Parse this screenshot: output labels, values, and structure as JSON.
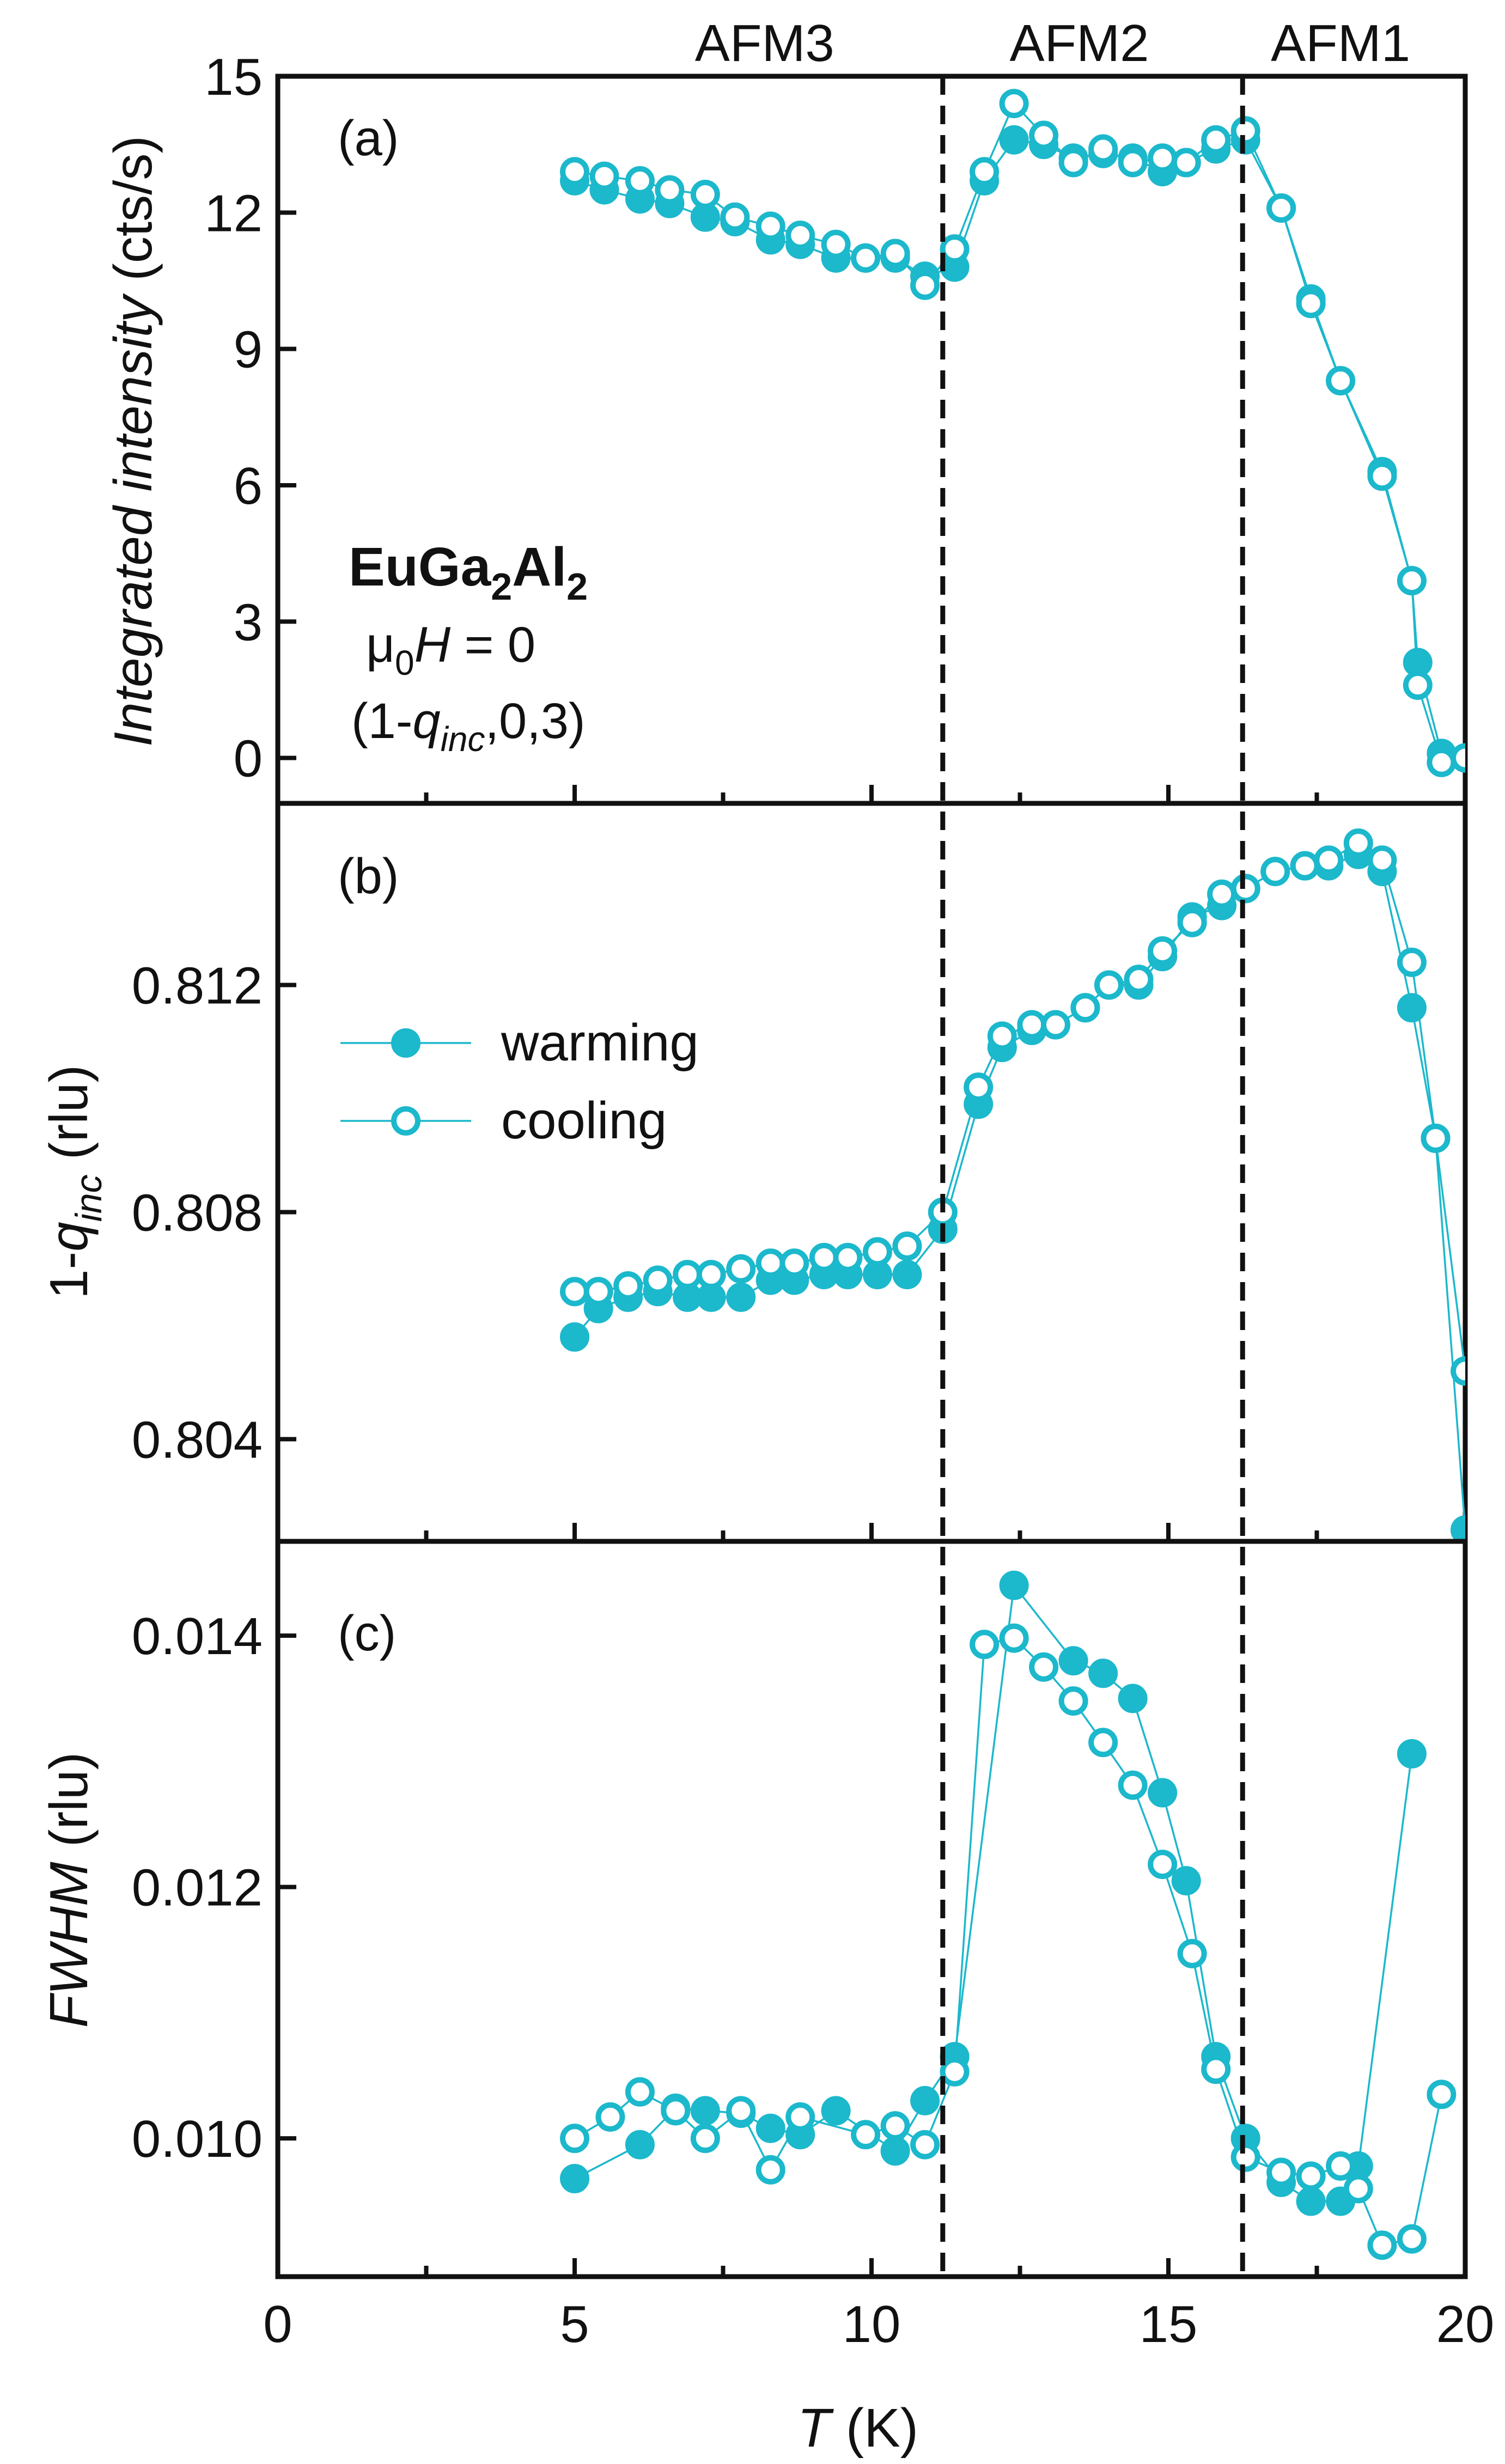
{
  "colors": {
    "series": "#1CB8CC",
    "axis": "#111111",
    "phase_line": "#111111",
    "background": "#ffffff"
  },
  "chart_data": [
    {
      "panel": "a",
      "type": "scatter",
      "panel_label": "(a)",
      "ylabel": "Integrated intensity (cts/s)",
      "ylabel_parts": {
        "italic": "Integrated intensity",
        "normal": " (cts/s)"
      },
      "ylim": [
        -1,
        15
      ],
      "yticks": [
        "0",
        "3",
        "6",
        "9",
        "12",
        "15"
      ],
      "ytick_values": [
        0,
        3,
        6,
        9,
        12,
        15
      ],
      "xlim": [
        0,
        20
      ],
      "annotation": {
        "compound": {
          "main": "EuGa",
          "sub1": "2",
          "mid": "Al",
          "sub2": "2"
        },
        "field": {
          "mu": "μ",
          "sub": "0",
          "H": "H",
          "rest": " = 0"
        },
        "reflection": {
          "pre": "(1-",
          "q": "q",
          "sub": "inc",
          "post": ",0,3)"
        }
      },
      "series": [
        {
          "name": "warming",
          "marker": "filled-circle",
          "points": [
            [
              5.0,
              12.7
            ],
            [
              5.5,
              12.5
            ],
            [
              6.1,
              12.3
            ],
            [
              6.6,
              12.2
            ],
            [
              7.2,
              11.9
            ],
            [
              7.7,
              11.8
            ],
            [
              8.3,
              11.4
            ],
            [
              8.8,
              11.3
            ],
            [
              9.4,
              11.0
            ],
            [
              9.9,
              11.0
            ],
            [
              10.4,
              11.0
            ],
            [
              10.9,
              10.6
            ],
            [
              11.4,
              10.8
            ],
            [
              11.9,
              12.7
            ],
            [
              12.4,
              13.6
            ],
            [
              12.9,
              13.5
            ],
            [
              13.4,
              13.2
            ],
            [
              13.9,
              13.3
            ],
            [
              14.4,
              13.2
            ],
            [
              14.9,
              12.9
            ],
            [
              15.3,
              13.1
            ],
            [
              15.8,
              13.4
            ],
            [
              16.3,
              13.6
            ],
            [
              16.9,
              12.1
            ],
            [
              17.4,
              10.1
            ],
            [
              17.9,
              8.3
            ],
            [
              18.6,
              6.3
            ],
            [
              19.1,
              3.9
            ],
            [
              19.2,
              2.1
            ],
            [
              19.6,
              0.1
            ],
            [
              20.0,
              0.0
            ]
          ]
        },
        {
          "name": "cooling",
          "marker": "open-circle",
          "points": [
            [
              5.0,
              12.9
            ],
            [
              5.5,
              12.8
            ],
            [
              6.1,
              12.7
            ],
            [
              6.6,
              12.5
            ],
            [
              7.2,
              12.4
            ],
            [
              7.7,
              11.9
            ],
            [
              8.3,
              11.7
            ],
            [
              8.8,
              11.5
            ],
            [
              9.4,
              11.3
            ],
            [
              9.9,
              11.0
            ],
            [
              10.4,
              11.1
            ],
            [
              10.9,
              10.4
            ],
            [
              11.4,
              11.2
            ],
            [
              11.9,
              12.9
            ],
            [
              12.4,
              14.4
            ],
            [
              12.9,
              13.7
            ],
            [
              13.4,
              13.1
            ],
            [
              13.9,
              13.4
            ],
            [
              14.4,
              13.1
            ],
            [
              14.9,
              13.2
            ],
            [
              15.3,
              13.1
            ],
            [
              15.8,
              13.6
            ],
            [
              16.3,
              13.8
            ],
            [
              16.9,
              12.1
            ],
            [
              17.4,
              10.0
            ],
            [
              17.9,
              8.3
            ],
            [
              18.6,
              6.2
            ],
            [
              19.1,
              3.9
            ],
            [
              19.2,
              1.6
            ],
            [
              19.6,
              -0.1
            ],
            [
              20.0,
              0.0
            ]
          ]
        }
      ]
    },
    {
      "panel": "b",
      "type": "scatter",
      "panel_label": "(b)",
      "ylabel": "1-qinc (rlu)",
      "ylabel_parts": {
        "pre": "1-",
        "q": "q",
        "sub": "inc",
        "post": " (rlu)"
      },
      "ylim": [
        0.8022,
        0.8152
      ],
      "yticks": [
        "0.804",
        "0.808",
        "0.812"
      ],
      "ytick_values": [
        0.804,
        0.808,
        0.812
      ],
      "xlim": [
        0,
        20
      ],
      "legend": {
        "placement": "center-left",
        "entries": [
          "warming",
          "cooling"
        ]
      },
      "series": [
        {
          "name": "warming",
          "marker": "filled-circle",
          "points": [
            [
              5.0,
              0.8058
            ],
            [
              5.4,
              0.8063
            ],
            [
              5.9,
              0.8065
            ],
            [
              6.4,
              0.8066
            ],
            [
              6.9,
              0.8065
            ],
            [
              7.3,
              0.8065
            ],
            [
              7.8,
              0.8065
            ],
            [
              8.3,
              0.8068
            ],
            [
              8.7,
              0.8068
            ],
            [
              9.2,
              0.8069
            ],
            [
              9.6,
              0.8069
            ],
            [
              10.1,
              0.8069
            ],
            [
              10.6,
              0.8069
            ],
            [
              11.2,
              0.8077
            ],
            [
              11.8,
              0.8099
            ],
            [
              12.2,
              0.8109
            ],
            [
              12.7,
              0.8112
            ],
            [
              13.1,
              0.8113
            ],
            [
              13.6,
              0.8116
            ],
            [
              14.0,
              0.812
            ],
            [
              14.5,
              0.812
            ],
            [
              14.9,
              0.8125
            ],
            [
              15.4,
              0.8132
            ],
            [
              15.9,
              0.8134
            ],
            [
              16.3,
              0.8137
            ],
            [
              16.8,
              0.814
            ],
            [
              17.3,
              0.8141
            ],
            [
              17.7,
              0.8141
            ],
            [
              18.2,
              0.8143
            ],
            [
              18.6,
              0.814
            ],
            [
              19.1,
              0.8116
            ],
            [
              19.5,
              0.8093
            ],
            [
              20.0,
              0.8024
            ]
          ]
        },
        {
          "name": "cooling",
          "marker": "open-circle",
          "points": [
            [
              5.0,
              0.8066
            ],
            [
              5.4,
              0.8066
            ],
            [
              5.9,
              0.8067
            ],
            [
              6.4,
              0.8068
            ],
            [
              6.9,
              0.8069
            ],
            [
              7.3,
              0.8069
            ],
            [
              7.8,
              0.807
            ],
            [
              8.3,
              0.8071
            ],
            [
              8.7,
              0.8071
            ],
            [
              9.2,
              0.8072
            ],
            [
              9.6,
              0.8072
            ],
            [
              10.1,
              0.8073
            ],
            [
              10.6,
              0.8074
            ],
            [
              11.2,
              0.808
            ],
            [
              11.8,
              0.8102
            ],
            [
              12.2,
              0.8111
            ],
            [
              12.7,
              0.8113
            ],
            [
              13.1,
              0.8113
            ],
            [
              13.6,
              0.8116
            ],
            [
              14.0,
              0.812
            ],
            [
              14.5,
              0.8121
            ],
            [
              14.9,
              0.8126
            ],
            [
              15.4,
              0.8131
            ],
            [
              15.9,
              0.8136
            ],
            [
              16.3,
              0.8137
            ],
            [
              16.8,
              0.814
            ],
            [
              17.3,
              0.8141
            ],
            [
              17.7,
              0.8142
            ],
            [
              18.2,
              0.8145
            ],
            [
              18.6,
              0.8142
            ],
            [
              19.1,
              0.8124
            ],
            [
              19.5,
              0.8093
            ],
            [
              20.0,
              0.8052
            ]
          ]
        }
      ]
    },
    {
      "panel": "c",
      "type": "scatter",
      "panel_label": "(c)",
      "ylabel": "FWHM (rlu)",
      "ylabel_parts": {
        "italic": "FWHM",
        "normal": " (rlu)"
      },
      "xlabel": "T (K)",
      "xlabel_parts": {
        "italic": "T",
        "normal": " (K)"
      },
      "ylim": [
        0.0089,
        0.01475
      ],
      "yticks": [
        "0.010",
        "0.012",
        "0.014"
      ],
      "ytick_values": [
        0.01,
        0.012,
        0.014
      ],
      "xlim": [
        0,
        20
      ],
      "xticks": [
        "0",
        "5",
        "10",
        "15",
        "20"
      ],
      "xtick_values": [
        0,
        5,
        10,
        15,
        20
      ],
      "series": [
        {
          "name": "warming",
          "marker": "filled-circle",
          "points": [
            [
              5.0,
              0.00968
            ],
            [
              6.1,
              0.00995
            ],
            [
              6.7,
              0.01024
            ],
            [
              7.2,
              0.01022
            ],
            [
              7.8,
              0.0102
            ],
            [
              8.3,
              0.01008
            ],
            [
              8.8,
              0.01003
            ],
            [
              9.4,
              0.01022
            ],
            [
              10.4,
              0.0099
            ],
            [
              10.9,
              0.0103
            ],
            [
              11.4,
              0.01065
            ],
            [
              12.4,
              0.0144
            ],
            [
              13.4,
              0.0138
            ],
            [
              13.9,
              0.0137
            ],
            [
              14.4,
              0.0135
            ],
            [
              14.9,
              0.01275
            ],
            [
              15.3,
              0.01205
            ],
            [
              15.8,
              0.01065
            ],
            [
              16.3,
              0.01
            ],
            [
              16.9,
              0.00965
            ],
            [
              17.4,
              0.0095
            ],
            [
              17.9,
              0.0095
            ],
            [
              18.2,
              0.00978
            ],
            [
              19.1,
              0.01306
            ]
          ]
        },
        {
          "name": "cooling",
          "marker": "open-circle",
          "points": [
            [
              5.0,
              0.01
            ],
            [
              5.6,
              0.01017
            ],
            [
              6.1,
              0.01037
            ],
            [
              6.7,
              0.01022
            ],
            [
              7.2,
              0.01
            ],
            [
              7.8,
              0.01022
            ],
            [
              8.3,
              0.00975
            ],
            [
              8.8,
              0.01017
            ],
            [
              9.9,
              0.01003
            ],
            [
              10.4,
              0.0101
            ],
            [
              10.9,
              0.00995
            ],
            [
              11.4,
              0.01053
            ],
            [
              11.9,
              0.01393
            ],
            [
              12.4,
              0.01398
            ],
            [
              12.9,
              0.01375
            ],
            [
              13.4,
              0.01348
            ],
            [
              13.9,
              0.01315
            ],
            [
              14.4,
              0.01281
            ],
            [
              14.9,
              0.01218
            ],
            [
              15.4,
              0.01147
            ],
            [
              15.8,
              0.01055
            ],
            [
              16.3,
              0.00985
            ],
            [
              16.9,
              0.00973
            ],
            [
              17.4,
              0.0097
            ],
            [
              17.9,
              0.00978
            ],
            [
              18.2,
              0.0096
            ],
            [
              18.6,
              0.00915
            ],
            [
              19.1,
              0.0092
            ],
            [
              19.6,
              0.01035
            ]
          ]
        }
      ]
    }
  ],
  "phases": {
    "labels": [
      "AFM3",
      "AFM2",
      "AFM1"
    ],
    "label_centers": [
      8.2,
      13.5,
      17.9
    ],
    "boundaries": [
      11.2,
      16.25
    ]
  }
}
